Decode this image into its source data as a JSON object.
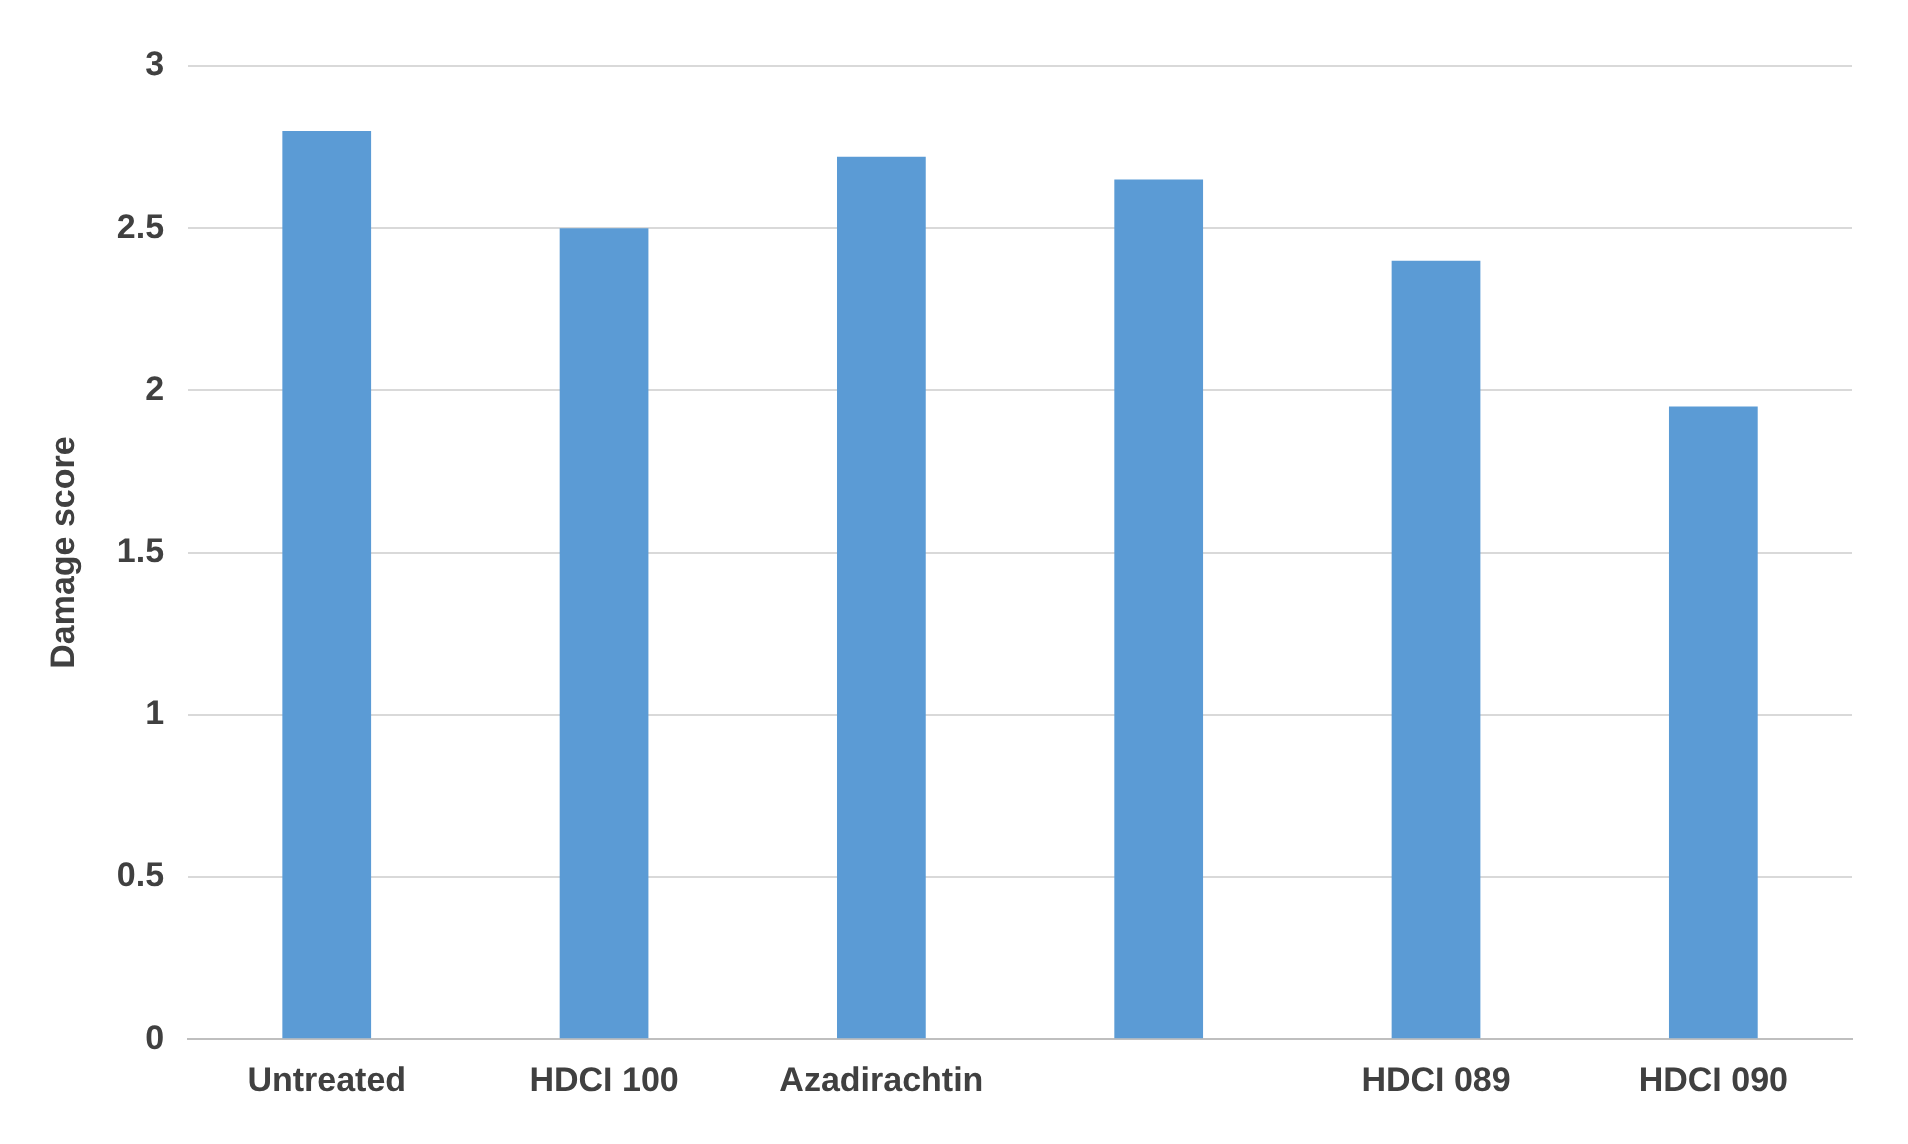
{
  "chart_data": {
    "type": "bar",
    "ylabel": "Damage score",
    "categories": [
      "Untreated",
      "HDCI 100",
      "Azadirachtin",
      null,
      "HDCI 089",
      "HDCI 090"
    ],
    "values": [
      2.8,
      2.5,
      2.72,
      2.65,
      2.4,
      1.95
    ],
    "color": "#5b9bd5",
    "ylim": [
      0,
      3
    ],
    "yticks": [
      0,
      0.5,
      1,
      1.5,
      2,
      2.5,
      3
    ],
    "grid": "y",
    "legend": false
  }
}
